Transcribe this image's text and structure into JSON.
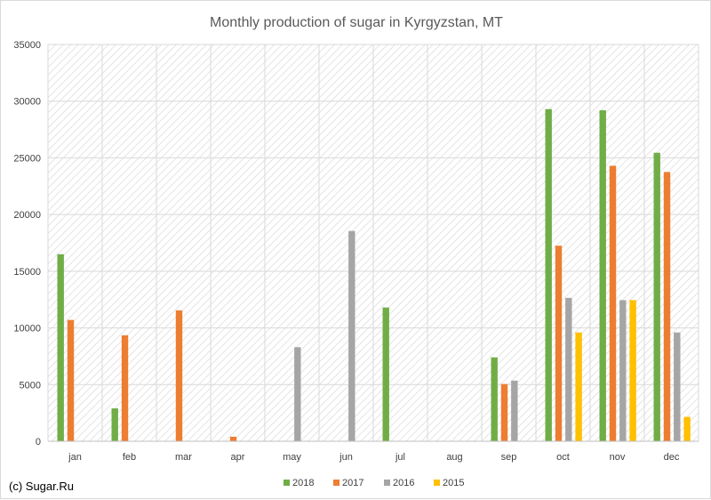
{
  "chart_data": {
    "type": "bar",
    "title": "Monthly production of sugar in Kyrgyzstan, MT",
    "xlabel": "",
    "ylabel": "",
    "categories": [
      "jan",
      "feb",
      "mar",
      "apr",
      "may",
      "jun",
      "jul",
      "aug",
      "sep",
      "oct",
      "nov",
      "dec"
    ],
    "series": [
      {
        "name": "2018",
        "color": "#70ad47",
        "values": [
          16500,
          2900,
          0,
          0,
          0,
          0,
          11800,
          0,
          7400,
          29300,
          29200,
          25450
        ]
      },
      {
        "name": "2017",
        "color": "#ed7d31",
        "values": [
          10700,
          9350,
          11550,
          400,
          0,
          0,
          0,
          0,
          5050,
          17250,
          24300,
          23750
        ]
      },
      {
        "name": "2016",
        "color": "#a5a5a5",
        "values": [
          0,
          0,
          0,
          0,
          8300,
          18550,
          0,
          0,
          5350,
          12650,
          12450,
          9600
        ]
      },
      {
        "name": "2015",
        "color": "#ffc000",
        "values": [
          0,
          0,
          0,
          0,
          0,
          0,
          0,
          0,
          0,
          9600,
          12450,
          2150
        ]
      }
    ],
    "ylim": [
      0,
      35000
    ],
    "yticks": [
      0,
      5000,
      10000,
      15000,
      20000,
      25000,
      30000,
      35000
    ],
    "grid": true,
    "legend_position": "bottom",
    "plot_background": "diagonal-hatch"
  },
  "credit": "(c) Sugar.Ru"
}
